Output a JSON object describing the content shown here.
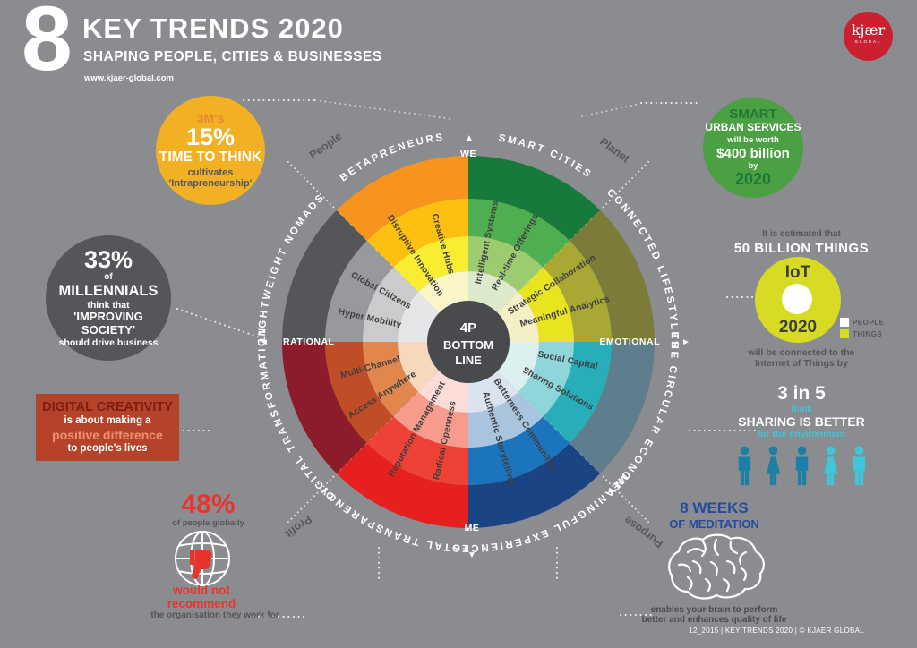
{
  "header": {
    "big_number": "8",
    "title": "KEY TRENDS 2020",
    "subtitle": "SHAPING PEOPLE, CITIES & BUSINESSES",
    "url": "www.kjaer-global.com"
  },
  "logo": {
    "name": "kjær",
    "sub": "GLOBAL",
    "bg": "#CB2030"
  },
  "callouts": {
    "three_m": {
      "bg": "#F2B124",
      "brand": "3M's",
      "stat": "15%",
      "title": "TIME TO THINK",
      "sub1": "cultivates",
      "sub2": "'Intrapreneurship'"
    },
    "smart_urban": {
      "bg": "#4CA044",
      "head": "SMART",
      "line1": "URBAN SERVICES",
      "line2": "will be worth",
      "stat": "$400 billion",
      "line3": "by",
      "year": "2020"
    },
    "millennials": {
      "bg": "#55565A",
      "stat": "33%",
      "of": "of",
      "who": "MILLENNIALS",
      "line1": "think that",
      "quote": "'IMPROVING SOCIETY'",
      "line2": "should drive business"
    },
    "digital_creativity": {
      "bg": "#B5432C",
      "title": "DIGITAL CREATIVITY",
      "line1": "is about making a",
      "accent": "positive difference",
      "line2": "to people's lives"
    },
    "recommend": {
      "stat": "48%",
      "sub": "of people globally",
      "accent1": "would not",
      "accent2": "recommend",
      "tail": "the organisation they work for",
      "accent_color": "#E8352C"
    },
    "iot": {
      "pre1": "It is estimated that",
      "pre2": "50 BILLION THINGS",
      "label": "IoT",
      "year": "2020",
      "bg": "#D7DB23",
      "post1": "will be connected to the",
      "post2": "Internet of Things by",
      "legend": [
        {
          "label": "PEOPLE",
          "color": "#FFFFFF"
        },
        {
          "label": "THINGS",
          "color": "#D7DB23"
        }
      ]
    },
    "sharing": {
      "stat": "3 in 5",
      "mid": "think",
      "title": "SHARING IS BETTER",
      "sub": "for the environment",
      "accent": "#3EC6D9",
      "people": [
        {
          "type": "male",
          "color": "#1D7FA5"
        },
        {
          "type": "female",
          "color": "#1D7FA5"
        },
        {
          "type": "male",
          "color": "#1D7FA5"
        },
        {
          "type": "female",
          "color": "#3EC6D9"
        },
        {
          "type": "male",
          "color": "#3EC6D9"
        }
      ]
    },
    "meditation": {
      "stat": "8 WEEKS",
      "title": "OF MEDITATION",
      "line1": "enables your brain to perform",
      "line2": "better and enhances quality of life",
      "accent": "#274B9C"
    }
  },
  "wheel": {
    "center": [
      "4P",
      "BOTTOM",
      "LINE"
    ],
    "axis": {
      "top": "WE",
      "bottom": "ME",
      "left": "RATIONAL",
      "right": "EMOTIONAL"
    },
    "corners": [
      "People",
      "Planet",
      "Purpose",
      "Profit"
    ],
    "sectors": [
      {
        "label": "SMART CITIES",
        "colors": [
          "#17793B",
          "#4FAE50",
          "#9DCB70",
          "#DCEACB"
        ],
        "sub": [
          "Intelligent Systems",
          "Real-time Offerings"
        ]
      },
      {
        "label": "CONNECTED LIFESTYLES",
        "colors": [
          "#7C7B39",
          "#A9A834",
          "#E8E41F",
          "#F2F0C4"
        ],
        "sub": [
          "Strategic Collaboration",
          "Meaningful Analytics"
        ]
      },
      {
        "label": "THE CIRCULAR ECONOMY",
        "colors": [
          "#5E7E8E",
          "#27AEB8",
          "#8FD6DA",
          "#DDF0F0"
        ],
        "sub": [
          "Social Capital",
          "Sharing Solutions"
        ]
      },
      {
        "label": "MEANINGFUL EXPERIENCES",
        "colors": [
          "#1B4484",
          "#1C75BC",
          "#A9C4DE",
          "#DAE3F0"
        ],
        "sub": [
          "Betterness Communities",
          "Authentic Storytelling"
        ]
      },
      {
        "label": "TOTAL TRANSPARENCY",
        "colors": [
          "#E6201E",
          "#EF4136",
          "#F79C8D",
          "#FBDCD7"
        ],
        "sub": [
          "Radical Openness",
          "Reputation Management"
        ]
      },
      {
        "label": "DIGITAL TRANSFORMATION",
        "colors": [
          "#8C1B2C",
          "#BF4D26",
          "#E1874E",
          "#F6D9BD"
        ],
        "sub": [
          "Access Anywhere",
          "Multi-Channel"
        ]
      },
      {
        "label": "LIGHTWEIGHT NOMADS",
        "colors": [
          "#55565A",
          "#97999D",
          "#C9CBCD",
          "#E5E6E7"
        ],
        "sub": [
          "Hyper Mobility",
          "Global Citizens"
        ]
      },
      {
        "label": "BETAPRENEURS",
        "colors": [
          "#F7941E",
          "#FDC010",
          "#F9ED32",
          "#FBF6C8"
        ],
        "sub": [
          "Disruptive Innovation",
          "Creative Hubs"
        ]
      }
    ]
  },
  "footer": "12_2015 | KEY TRENDS 2020 | © KJAER GLOBAL"
}
